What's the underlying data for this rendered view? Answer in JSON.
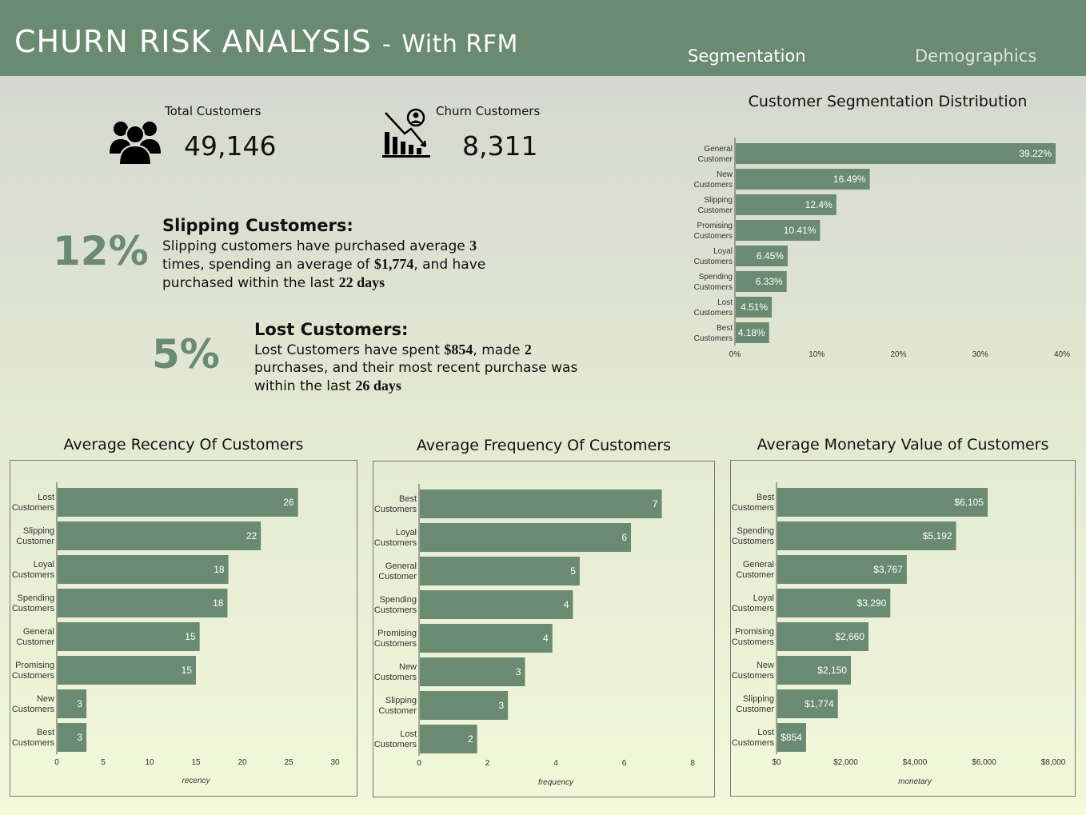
{
  "header": {
    "title": "CHURN RISK ANALYSIS",
    "title_sep": "-",
    "subtitle": "With RFM",
    "nav": [
      "Segmentation",
      "Demographics"
    ],
    "color": "#6a8b72"
  },
  "kpis": {
    "total_label": "Total Customers",
    "total_value": "49,146",
    "total_icon": "people-group-icon",
    "churn_label": "Churn Customers",
    "churn_value": "8,311",
    "churn_icon": "churn-decline-chart-icon"
  },
  "notes": {
    "slipping": {
      "pct": "12%",
      "title": "Slipping Customers:",
      "t1": "Slipping customers have purchased average ",
      "v1": "3",
      "t2": " times, spending an average of  ",
      "v2": "$1,774",
      "t3": ", and have purchased within the last ",
      "v3": "22 days"
    },
    "lost": {
      "pct": "5%",
      "title": "Lost Customers:",
      "t1": "Lost Customers have spent ",
      "v1": "$854",
      "t2": ", made ",
      "v2": "2",
      "t3": " purchases, and their most recent purchase was within the last ",
      "v3": "26 days"
    }
  },
  "chart_data": [
    {
      "type": "bar",
      "orientation": "horizontal",
      "title": "Customer Segmentation Distribution",
      "categories": [
        "General Customer",
        "New Customers",
        "Slipping Customer",
        "Promising Customers",
        "Loyal Customers",
        "Spending Customers",
        "Lost Customers",
        "Best Customers"
      ],
      "values": [
        39.22,
        16.49,
        12.4,
        10.41,
        6.45,
        6.33,
        4.51,
        4.18
      ],
      "value_labels": [
        "39.22%",
        "16.49%",
        "12.4%",
        "10.41%",
        "6.45%",
        "6.33%",
        "4.51%",
        "4.18%"
      ],
      "xlim": [
        0,
        40
      ],
      "xticks": [
        "0%",
        "10%",
        "20%",
        "30%",
        "40%"
      ],
      "xlabel": "",
      "color": "#6a8b72"
    },
    {
      "type": "bar",
      "orientation": "horizontal",
      "title": "Average Recency Of Customers",
      "categories": [
        "Lost Customers",
        "Slipping Customer",
        "Loyal Customers",
        "Spending Customers",
        "General Customer",
        "Promising Customers",
        "New Customers",
        "Best Customers"
      ],
      "values": [
        26,
        22,
        18.5,
        18.4,
        15.4,
        15,
        3.2,
        3.2
      ],
      "value_labels": [
        "26",
        "22",
        "18",
        "18",
        "15",
        "15",
        "3",
        "3"
      ],
      "xlim": [
        0,
        30
      ],
      "xticks": [
        "0",
        "5",
        "10",
        "15",
        "20",
        "25",
        "30"
      ],
      "xlabel": "recency",
      "color": "#6a8b72"
    },
    {
      "type": "bar",
      "orientation": "horizontal",
      "title": "Average Frequency Of Customers",
      "categories": [
        "Best Customers",
        "Loyal Customers",
        "General Customer",
        "Spending Customers",
        "Promising Customers",
        "New Customers",
        "Slipping Customer",
        "Lost Customers"
      ],
      "values": [
        7.1,
        6.2,
        4.7,
        4.5,
        3.9,
        3.1,
        2.6,
        1.7
      ],
      "value_labels": [
        "7",
        "6",
        "5",
        "4",
        "4",
        "3",
        "3",
        "2"
      ],
      "xlim": [
        0,
        8
      ],
      "xticks": [
        "0",
        "2",
        "4",
        "6",
        "8"
      ],
      "xlabel": "frequency",
      "color": "#6a8b72"
    },
    {
      "type": "bar",
      "orientation": "horizontal",
      "title": "Average Monetary Value of Customers",
      "categories": [
        "Best Customers",
        "Spending Customers",
        "General Customer",
        "Loyal Customers",
        "Promising Customers",
        "New Customers",
        "Slipping Customer",
        "Lost Customers"
      ],
      "values": [
        6105,
        5192,
        3767,
        3290,
        2660,
        2150,
        1774,
        854
      ],
      "value_labels": [
        "$6,105",
        "$5,192",
        "$3,767",
        "$3,290",
        "$2,660",
        "$2,150",
        "$1,774",
        "$854"
      ],
      "xlim": [
        0,
        8000
      ],
      "xticks": [
        "$0",
        "$2,000",
        "$4,000",
        "$6,000",
        "$8,000"
      ],
      "xlabel": "monetary",
      "color": "#6a8b72"
    }
  ]
}
